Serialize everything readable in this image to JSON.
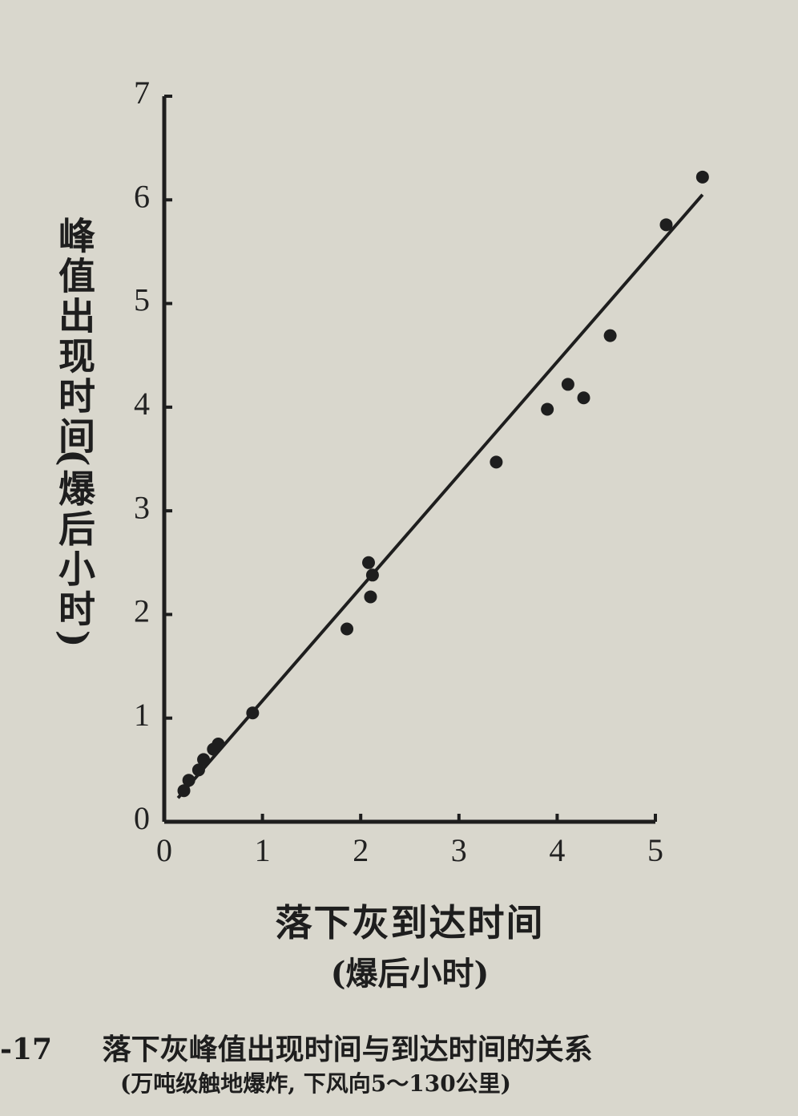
{
  "chart_data": {
    "type": "scatter",
    "y_label": [
      "峰值出现时间",
      "(爆后小时)"
    ],
    "x_label": [
      "落下灰到达时间",
      "(爆后小时)"
    ],
    "x": [
      0.2,
      0.25,
      0.35,
      0.4,
      0.5,
      0.55,
      0.9,
      1.86,
      2.1,
      2.12,
      2.08,
      3.38,
      3.9,
      4.11,
      4.27,
      4.54,
      5.11,
      5.48
    ],
    "y": [
      0.3,
      0.4,
      0.5,
      0.6,
      0.7,
      0.75,
      1.05,
      1.86,
      2.17,
      2.38,
      2.5,
      3.47,
      3.98,
      4.22,
      4.09,
      4.69,
      5.76,
      6.22
    ],
    "color": "#1e1e1e",
    "fit_line": {
      "x": [
        0.14,
        5.48
      ],
      "y": [
        0.23,
        6.05
      ]
    },
    "xlim": [
      0,
      5
    ],
    "ylim": [
      0,
      7
    ],
    "xticks": [
      0,
      1,
      2,
      3,
      4,
      5
    ],
    "yticks": [
      0,
      1,
      2,
      3,
      4,
      5,
      6,
      7
    ]
  },
  "caption": {
    "number": "-17",
    "title": "落下灰峰值出现时间与到达时间的关系",
    "note": "(万吨级触地爆炸, 下风向5～130公里)"
  }
}
